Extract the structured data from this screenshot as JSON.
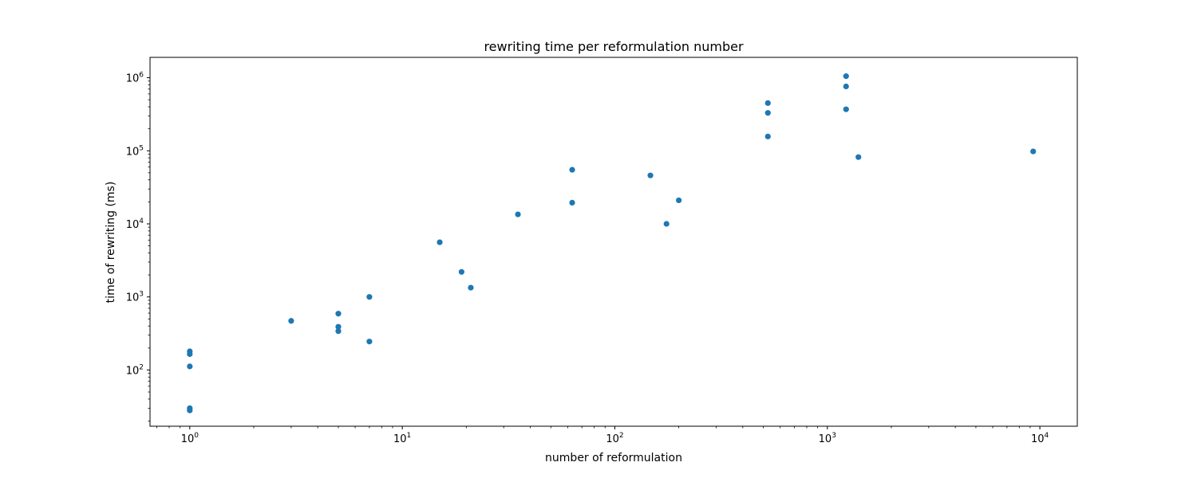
{
  "chart_data": {
    "type": "scatter",
    "title": "rewriting time per reformulation number",
    "xlabel": "number of reformulation",
    "ylabel": "time of rewriting (ms)",
    "xscale": "log",
    "yscale": "log",
    "xlim": [
      0.65,
      15000
    ],
    "ylim": [
      17,
      1900000
    ],
    "grid": false,
    "x_major_ticks": [
      {
        "value": 1,
        "base": "10",
        "exp": "0"
      },
      {
        "value": 10,
        "base": "10",
        "exp": "1"
      },
      {
        "value": 100,
        "base": "10",
        "exp": "2"
      },
      {
        "value": 1000,
        "base": "10",
        "exp": "3"
      },
      {
        "value": 10000,
        "base": "10",
        "exp": "4"
      }
    ],
    "y_major_ticks": [
      {
        "value": 100,
        "base": "10",
        "exp": "2"
      },
      {
        "value": 1000,
        "base": "10",
        "exp": "3"
      },
      {
        "value": 10000,
        "base": "10",
        "exp": "4"
      },
      {
        "value": 100000,
        "base": "10",
        "exp": "5"
      },
      {
        "value": 1000000,
        "base": "10",
        "exp": "6"
      }
    ],
    "marker_color": "#1f77b4",
    "points": [
      {
        "x": 1,
        "y": 180
      },
      {
        "x": 1,
        "y": 165
      },
      {
        "x": 1,
        "y": 112
      },
      {
        "x": 1,
        "y": 30
      },
      {
        "x": 1,
        "y": 28
      },
      {
        "x": 3,
        "y": 470
      },
      {
        "x": 5,
        "y": 590
      },
      {
        "x": 5,
        "y": 390
      },
      {
        "x": 5,
        "y": 340
      },
      {
        "x": 7,
        "y": 1000
      },
      {
        "x": 7,
        "y": 245
      },
      {
        "x": 15,
        "y": 5600
      },
      {
        "x": 19,
        "y": 2200
      },
      {
        "x": 21,
        "y": 1340
      },
      {
        "x": 35,
        "y": 13500
      },
      {
        "x": 63,
        "y": 55000
      },
      {
        "x": 63,
        "y": 19500
      },
      {
        "x": 147,
        "y": 46000
      },
      {
        "x": 175,
        "y": 10000
      },
      {
        "x": 200,
        "y": 21000
      },
      {
        "x": 525,
        "y": 450000
      },
      {
        "x": 525,
        "y": 330000
      },
      {
        "x": 525,
        "y": 157000
      },
      {
        "x": 1225,
        "y": 1050000
      },
      {
        "x": 1225,
        "y": 760000
      },
      {
        "x": 1225,
        "y": 370000
      },
      {
        "x": 1400,
        "y": 82000
      },
      {
        "x": 9300,
        "y": 98000
      }
    ]
  }
}
